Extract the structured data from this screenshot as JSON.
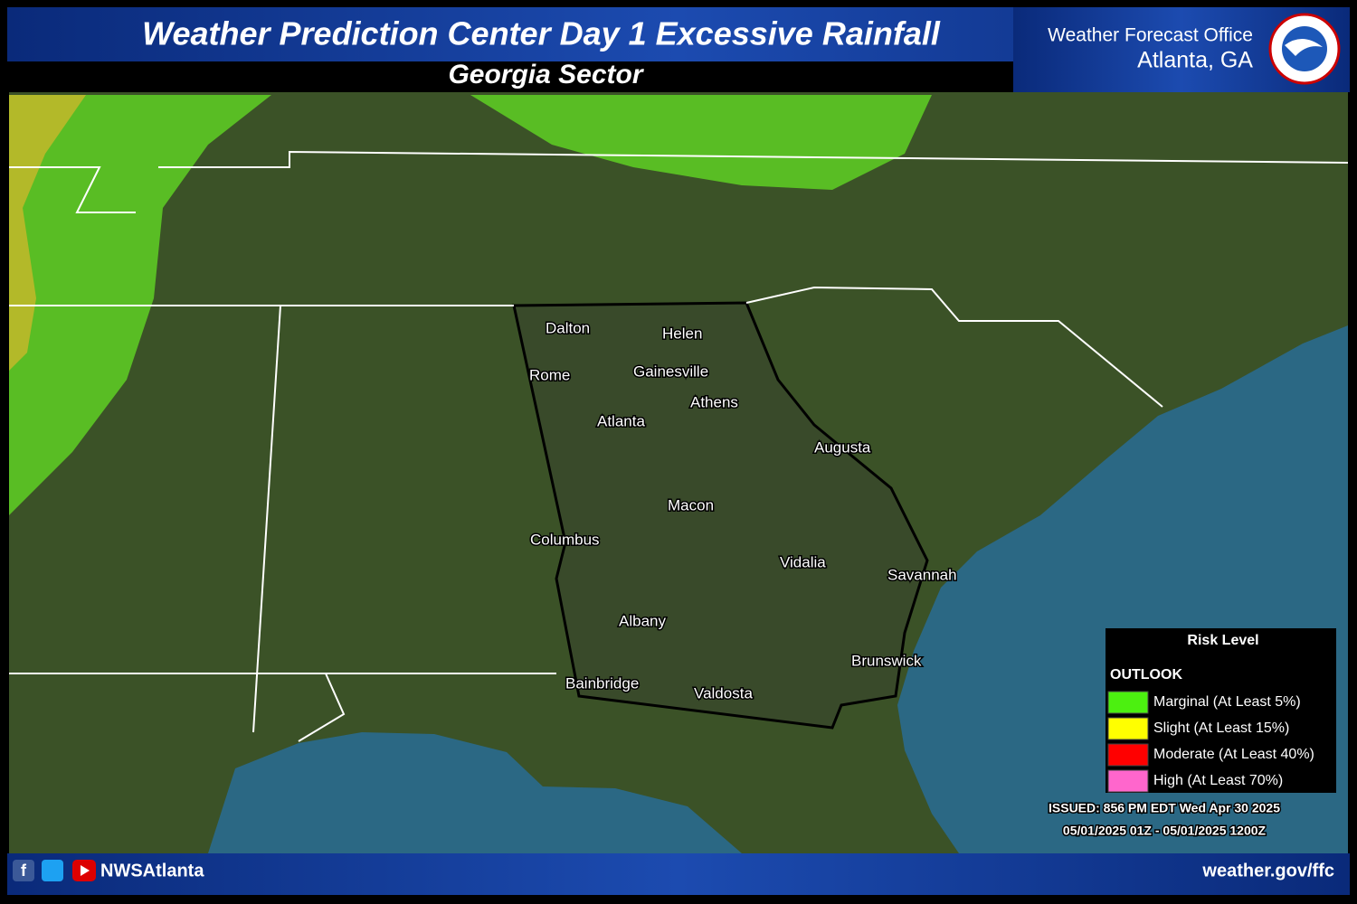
{
  "header": {
    "title": "Weather Prediction Center Day 1 Excessive Rainfall",
    "subtitle": "Georgia Sector",
    "office": "Weather Forecast Office",
    "location": "Atlanta, GA"
  },
  "cities": [
    "Dalton",
    "Helen",
    "Rome",
    "Gainesville",
    "Athens",
    "Atlanta",
    "Augusta",
    "Macon",
    "Columbus",
    "Vidalia",
    "Savannah",
    "Albany",
    "Brunswick",
    "Bainbridge",
    "Valdosta"
  ],
  "legend": {
    "title": "Risk Level",
    "section": "OUTLOOK",
    "items": [
      {
        "label": "Marginal (At Least 5%)",
        "color": "#4cf010"
      },
      {
        "label": "Slight (At Least 15%)",
        "color": "#ffff00"
      },
      {
        "label": "Moderate (At Least 40%)",
        "color": "#ff0000"
      },
      {
        "label": "High (At Least 70%)",
        "color": "#ff66cc"
      }
    ]
  },
  "issued": "ISSUED: 856 PM EDT Wed Apr 30 2025",
  "valid": "05/01/2025 01Z - 05/01/2025 1200Z",
  "footer": {
    "social": "NWSAtlanta",
    "url": "weather.gov/ffc"
  }
}
